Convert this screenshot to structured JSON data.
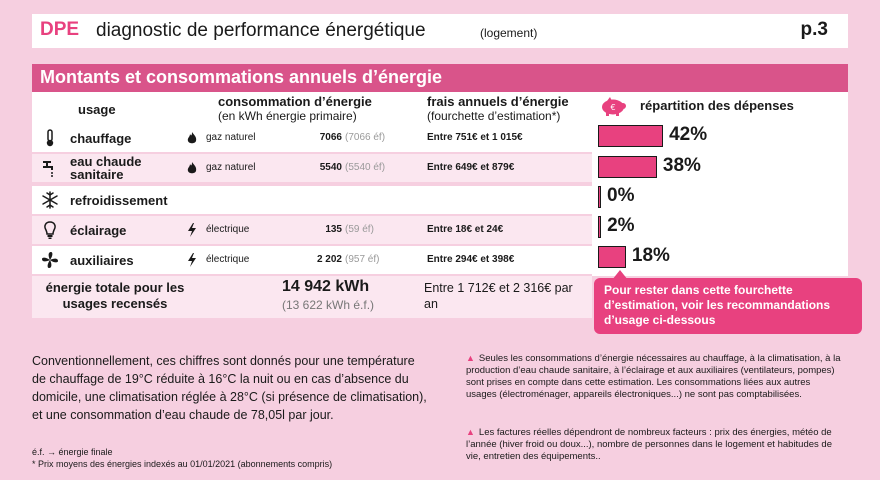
{
  "header": {
    "dpe": "DPE",
    "title": "diagnostic de performance énergétique",
    "subtitle": "(logement)",
    "page": "p.3"
  },
  "section_title": "Montants et consommations annuels d’énergie",
  "columns": {
    "usage": "usage",
    "consumption": "consommation d’énergie",
    "consumption_sub": "(en kWh énergie primaire)",
    "costs": "frais annuels d’énergie",
    "costs_sub": "(fourchette d’estimation*)",
    "distribution": "répartition des dépenses"
  },
  "rows": [
    {
      "icon": "thermometer-icon",
      "label": "chauffage",
      "energy_icon": "flame-icon",
      "energy": "gaz naturel",
      "kwh": "7066",
      "ef": "(7066 éf)",
      "cost": "Entre 751€ et 1 015€",
      "percent": 42,
      "percent_label": "42%"
    },
    {
      "icon": "faucet-icon",
      "label": "eau chaude sanitaire",
      "energy_icon": "flame-icon",
      "energy": "gaz naturel",
      "kwh": "5540",
      "ef": "(5540 éf)",
      "cost": "Entre 649€ et 879€",
      "percent": 38,
      "percent_label": "38%"
    },
    {
      "icon": "snowflake-icon",
      "label": "refroidissement",
      "energy_icon": "",
      "energy": "",
      "kwh": "",
      "ef": "",
      "cost": "",
      "percent": 0,
      "percent_label": "0%"
    },
    {
      "icon": "lightbulb-icon",
      "label": "éclairage",
      "energy_icon": "lightning-icon",
      "energy": "électrique",
      "kwh": "135",
      "ef": "(59 éf)",
      "cost": "Entre 18€ et 24€",
      "percent": 2,
      "percent_label": "2%"
    },
    {
      "icon": "fan-icon",
      "label": "auxiliaires",
      "energy_icon": "lightning-icon",
      "energy": "électrique",
      "kwh": "2 202",
      "ef": "(957 éf)",
      "cost": "Entre 294€ et 398€",
      "percent": 18,
      "percent_label": "18%"
    }
  ],
  "total": {
    "label": "énergie totale pour les usages recensés",
    "kwh": "14 942 kWh",
    "ef": "(13 622 kWh  é.f.)",
    "range": "Entre 1 712€ et 2 316€  par an"
  },
  "callout": "Pour rester dans cette fourchette d’estimation, voir les recommandations d’usage ci-dessous",
  "paragraph": "Conventionnellement, ces chiffres sont donnés pour une température de chauffage de 19°C réduite à 16°C la nuit ou en cas d’absence du domicile, une climatisation réglée à 28°C (si présence de climatisation), et une consommation d’eau chaude de 78,05l  par jour.",
  "notes": {
    "ef": "é.f. → énergie finale",
    "prices": "* Prix moyens des énergies indexés au 01/01/2021  (abonnements compris)"
  },
  "right_notes": [
    "Seules les consommations d’énergie nécessaires au chauffage, à la climatisation, à la production d’eau chaude sanitaire, à l’éclairage et aux auxiliaires (ventilateurs, pompes) sont prises en compte dans cette estimation. Les consommations liées aux autres usages (électroménager, appareils électroniques...) ne sont pas comptabilisées.",
    "Les factures réelles dépendront de nombreux facteurs : prix des énergies, météo de l’année (hiver froid ou doux...), nombre de personnes dans le logement et habitudes de vie, entretien des équipements.."
  ],
  "colors": {
    "accent": "#e8417f",
    "band": "#d9548a",
    "background": "#f6cfe0",
    "row_alt": "#fbe7f0"
  }
}
